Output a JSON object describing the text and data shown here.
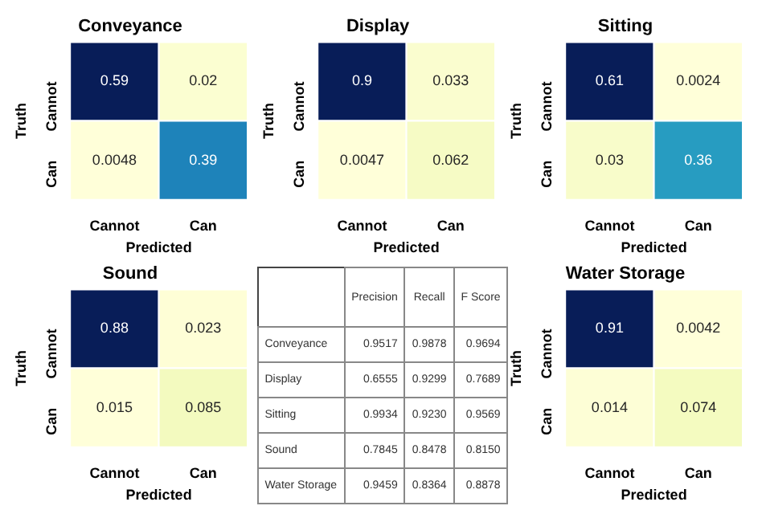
{
  "chart_data": [
    {
      "type": "heatmap",
      "title": "Conveyance",
      "xlabel": "Predicted",
      "ylabel": "Truth",
      "categories": [
        "Cannot",
        "Can"
      ],
      "y_categories": [
        "Cannot",
        "Can"
      ],
      "cells": [
        [
          0.59,
          0.02
        ],
        [
          0.0048,
          0.39
        ]
      ],
      "data_labels": true
    },
    {
      "type": "heatmap",
      "title": "Display",
      "xlabel": "Predicted",
      "ylabel": "Truth",
      "categories": [
        "Cannot",
        "Can"
      ],
      "y_categories": [
        "Cannot",
        "Can"
      ],
      "cells": [
        [
          0.9,
          0.033
        ],
        [
          0.0047,
          0.062
        ]
      ],
      "data_labels": true
    },
    {
      "type": "heatmap",
      "title": "Sitting",
      "xlabel": "Predicted",
      "ylabel": "Truth",
      "categories": [
        "Cannot",
        "Can"
      ],
      "y_categories": [
        "Cannot",
        "Can"
      ],
      "cells": [
        [
          0.61,
          0.0024
        ],
        [
          0.03,
          0.36
        ]
      ],
      "data_labels": true
    },
    {
      "type": "heatmap",
      "title": "Sound",
      "xlabel": "Predicted",
      "ylabel": "Truth",
      "categories": [
        "Cannot",
        "Can"
      ],
      "y_categories": [
        "Cannot",
        "Can"
      ],
      "cells": [
        [
          0.88,
          0.023
        ],
        [
          0.015,
          0.085
        ]
      ],
      "data_labels": true
    },
    {
      "type": "other",
      "categories": [
        "Precision",
        "Recall",
        "F Score"
      ],
      "y_categories": [
        "Conveyance",
        "Display",
        "Sitting",
        "Sound",
        "Water Storage"
      ],
      "cells": [
        [
          "0.9517",
          "0.9878",
          "0.9694"
        ],
        [
          "0.6555",
          "0.9299",
          "0.7689"
        ],
        [
          "0.9934",
          "0.9230",
          "0.9569"
        ],
        [
          "0.7845",
          "0.8478",
          "0.8150"
        ],
        [
          "0.9459",
          "0.8364",
          "0.8878"
        ]
      ]
    },
    {
      "type": "heatmap",
      "title": "Water Storage",
      "xlabel": "Predicted",
      "ylabel": "Truth",
      "categories": [
        "Cannot",
        "Can"
      ],
      "y_categories": [
        "Cannot",
        "Can"
      ],
      "cells": [
        [
          0.91,
          0.0042
        ],
        [
          0.014,
          0.074
        ]
      ],
      "data_labels": true
    }
  ]
}
